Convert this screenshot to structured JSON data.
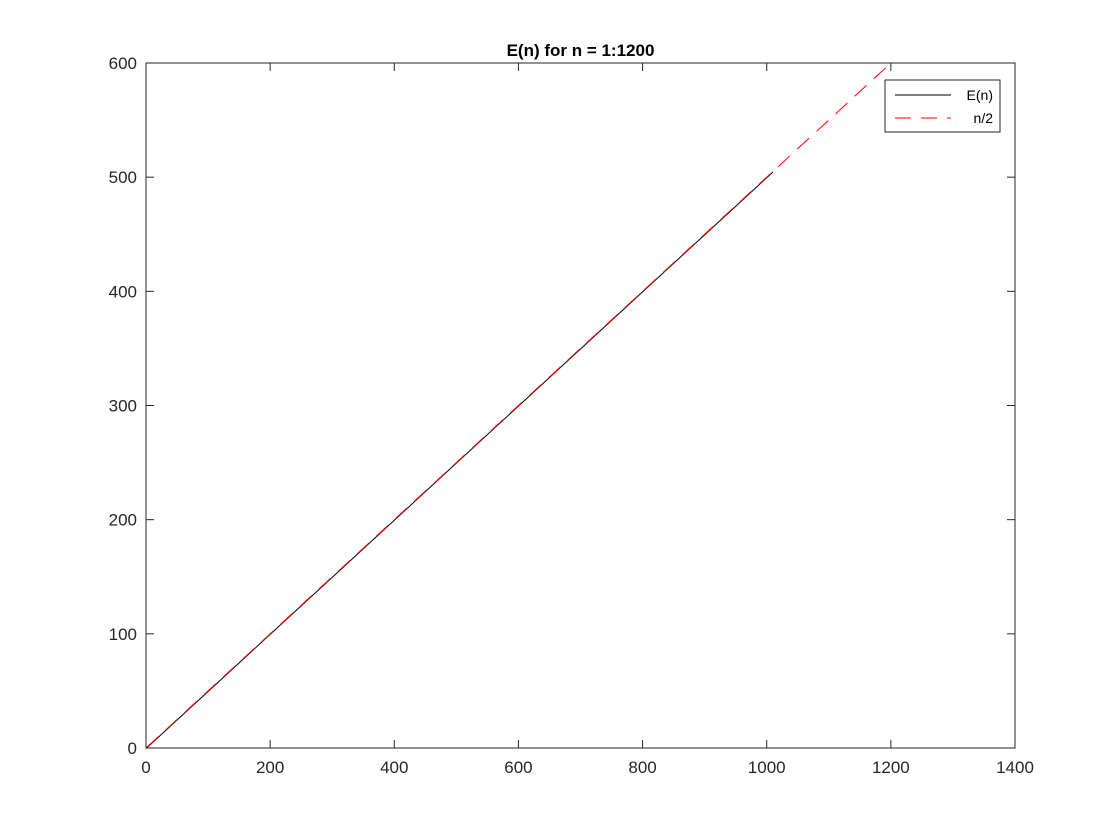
{
  "chart_data": {
    "type": "line",
    "title": "E(n) for n = 1:1200",
    "xlabel": "",
    "ylabel": "",
    "xlim": [
      0,
      1400
    ],
    "ylim": [
      0,
      600
    ],
    "xticks": [
      0,
      200,
      400,
      600,
      800,
      1000,
      1200,
      1400
    ],
    "yticks": [
      0,
      100,
      200,
      300,
      400,
      500,
      600
    ],
    "grid": false,
    "legend_position": "top-right",
    "series": [
      {
        "name": "E(n)",
        "color": "#000000",
        "style": "solid",
        "x": [
          1,
          100,
          200,
          300,
          400,
          500,
          600,
          700,
          800,
          900,
          1000,
          1010
        ],
        "y": [
          0,
          49.5,
          99.5,
          149.5,
          199.5,
          249.5,
          299.5,
          349.5,
          399.5,
          449.5,
          499.5,
          504.5
        ]
      },
      {
        "name": "n/2",
        "color": "#ff0000",
        "style": "dashed",
        "x": [
          1,
          1200
        ],
        "y": [
          0.5,
          600
        ]
      }
    ]
  }
}
